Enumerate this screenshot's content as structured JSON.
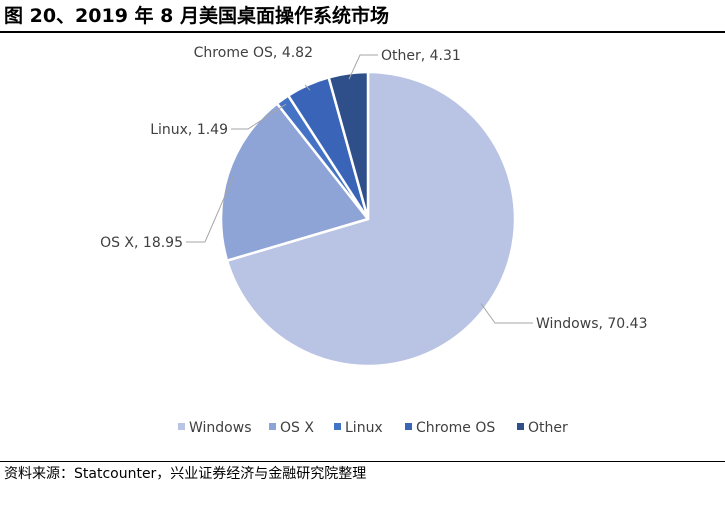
{
  "figure": {
    "title": "图 20、2019 年 8 月美国桌面操作系统市场",
    "source": "资料来源：Statcounter，兴业证券经济与金融研究院整理"
  },
  "chart_data": {
    "type": "pie",
    "categories": [
      "Windows",
      "OS X",
      "Linux",
      "Chrome OS",
      "Other"
    ],
    "values": [
      70.43,
      18.95,
      1.49,
      4.82,
      4.31
    ],
    "labels": [
      "Windows, 70.43",
      "OS X, 18.95",
      "Linux, 1.49",
      "Chrome OS, 4.82",
      "Other, 4.31"
    ],
    "colors": [
      "#B9C3E3",
      "#8EA3D6",
      "#4472C4",
      "#3964B8",
      "#2F4F8A"
    ],
    "legend_position": "bottom",
    "start": "12 o'clock",
    "direction": "clockwise"
  }
}
